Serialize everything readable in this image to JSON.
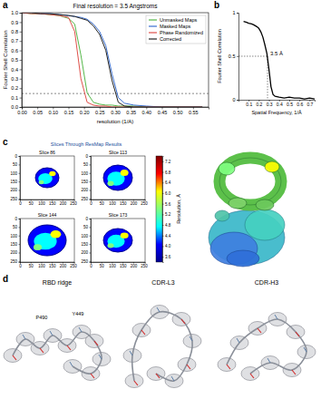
{
  "figure": {
    "panel_letters": [
      "a",
      "b",
      "c",
      "d"
    ],
    "resmap_title": "Slices Through ResMap Results",
    "density_titles": [
      "RBD ridge",
      "CDR-L3",
      "CDR-H3"
    ],
    "residue_labels": [
      "P490",
      "Y449"
    ]
  },
  "chart_data": [
    {
      "type": "line",
      "title": "Final resolution = 3.5 Angstroms",
      "x_label": "resolution (1/A)",
      "y_label": "Fourier Shell Correlation",
      "x": [
        0,
        0.03,
        0.06,
        0.09,
        0.12,
        0.15,
        0.17,
        0.19,
        0.21,
        0.23,
        0.25,
        0.27,
        0.29,
        0.31,
        0.33,
        0.36,
        0.4,
        0.45,
        0.5,
        0.55,
        0.58
      ],
      "series": [
        {
          "name": "Unmasked Maps",
          "color": "#55b84a",
          "values": [
            1,
            0.99,
            0.99,
            0.98,
            0.97,
            0.94,
            0.88,
            0.55,
            0.15,
            0.05,
            0.03,
            0.02,
            0.02,
            0.01,
            0.01,
            0.01,
            0,
            0,
            0,
            0,
            0
          ]
        },
        {
          "name": "Masked Maps",
          "color": "#3a6fd0",
          "values": [
            1,
            1,
            0.99,
            0.99,
            0.98,
            0.97,
            0.96,
            0.95,
            0.93,
            0.88,
            0.8,
            0.65,
            0.35,
            0.1,
            0.04,
            0.02,
            0.01,
            0,
            0,
            0,
            0
          ]
        },
        {
          "name": "Phase Randomized",
          "color": "#e0504a",
          "values": [
            1,
            0.99,
            0.99,
            0.98,
            0.97,
            0.95,
            0.8,
            0.3,
            0.05,
            0.02,
            0.01,
            0.01,
            0,
            0,
            0,
            0,
            0,
            0,
            0,
            0,
            0
          ]
        },
        {
          "name": "Corrected",
          "color": "#222222",
          "values": [
            1,
            1,
            0.99,
            0.99,
            0.98,
            0.97,
            0.96,
            0.94,
            0.92,
            0.86,
            0.77,
            0.6,
            0.28,
            0.05,
            0.01,
            0,
            0,
            0,
            0,
            0,
            0
          ]
        }
      ],
      "xlim": [
        0,
        0.6
      ],
      "ylim": [
        0,
        1
      ],
      "xticks": [
        {
          "value": 0,
          "label": "0.00"
        },
        {
          "value": 0.05,
          "label": "0.05"
        },
        {
          "value": 0.1,
          "label": "0.10"
        },
        {
          "value": 0.15,
          "label": "0.15"
        },
        {
          "value": 0.2,
          "label": "0.20"
        },
        {
          "value": 0.25,
          "label": "0.25"
        },
        {
          "value": 0.3,
          "label": "0.30"
        },
        {
          "value": 0.35,
          "label": "0.35"
        },
        {
          "value": 0.4,
          "label": "0.40"
        },
        {
          "value": 0.45,
          "label": "0.45"
        },
        {
          "value": 0.5,
          "label": "0.50"
        },
        {
          "value": 0.55,
          "label": "0.55"
        }
      ],
      "yticks": [
        {
          "value": 0,
          "label": "0.0"
        },
        0.1,
        0.2,
        0.3,
        0.4,
        0.5,
        0.6,
        0.7,
        0.8,
        0.9,
        {
          "value": 1,
          "label": "1.0"
        }
      ],
      "legend": "upper right",
      "threshold": 0.143
    },
    {
      "type": "line",
      "x_label": "Spatial Frequency, 1/Å",
      "y_label": "Fourier Shell Correlation",
      "x": [
        0.05,
        0.08,
        0.1,
        0.13,
        0.15,
        0.18,
        0.2,
        0.22,
        0.24,
        0.26,
        0.28,
        0.3,
        0.32,
        0.34,
        0.36,
        0.4,
        0.45,
        0.5,
        0.55,
        0.6,
        0.65,
        0.7,
        0.75
      ],
      "values": [
        0.9,
        0.89,
        0.88,
        0.87,
        0.86,
        0.84,
        0.82,
        0.78,
        0.72,
        0.63,
        0.53,
        0.35,
        0.15,
        0.06,
        0.04,
        0.03,
        0.02,
        0.03,
        0.02,
        0.02,
        0.01,
        0.02,
        0.01
      ],
      "color": "#000000",
      "xlim": [
        0,
        0.75
      ],
      "ylim": [
        0,
        1
      ],
      "xticks": [
        0.1,
        0.2,
        0.3,
        0.4,
        0.5,
        0.6,
        0.7
      ],
      "yticks": [
        0,
        0.5,
        1
      ],
      "annotation": "3.5 Å",
      "cutoff": {
        "x": 0.286,
        "y": 0.5
      }
    },
    {
      "type": "image",
      "title": "Slice 86",
      "xlim": [
        0,
        256
      ],
      "ylim": [
        256,
        0
      ],
      "xticks": [
        0,
        50,
        100,
        150,
        200,
        250
      ],
      "yticks": [
        0,
        50,
        100,
        150,
        200,
        250
      ]
    },
    {
      "type": "image",
      "title": "Slice 113",
      "xlim": [
        0,
        256
      ],
      "ylim": [
        256,
        0
      ],
      "xticks": [
        0,
        50,
        100,
        150,
        200,
        250
      ],
      "yticks": [
        0,
        50,
        100,
        150,
        200,
        250
      ]
    },
    {
      "type": "image",
      "title": "Slice 144",
      "xlim": [
        0,
        256
      ],
      "ylim": [
        256,
        0
      ],
      "xticks": [
        0,
        50,
        100,
        150,
        200,
        250
      ],
      "yticks": [
        0,
        50,
        100,
        150,
        200,
        250
      ]
    },
    {
      "type": "image",
      "title": "Slice 173",
      "xlim": [
        0,
        256
      ],
      "ylim": [
        256,
        0
      ],
      "xticks": [
        0,
        50,
        100,
        150,
        200,
        250
      ],
      "yticks": [
        0,
        50,
        100,
        150,
        200,
        250
      ]
    },
    {
      "type": "colorbar",
      "y_label": "Resolution, Å",
      "ylim": [
        3.4,
        7.4
      ],
      "yticks": [
        3.6,
        {
          "value": 4,
          "label": "4.0"
        },
        4.4,
        4.8,
        5.2,
        5.6,
        {
          "value": 6,
          "label": "6.0"
        },
        6.4,
        6.8,
        7.2
      ],
      "colors": [
        "#00008f",
        "#0000ff",
        "#00ffff",
        "#80ff80",
        "#ffff00",
        "#ff0000",
        "#800000"
      ]
    }
  ]
}
